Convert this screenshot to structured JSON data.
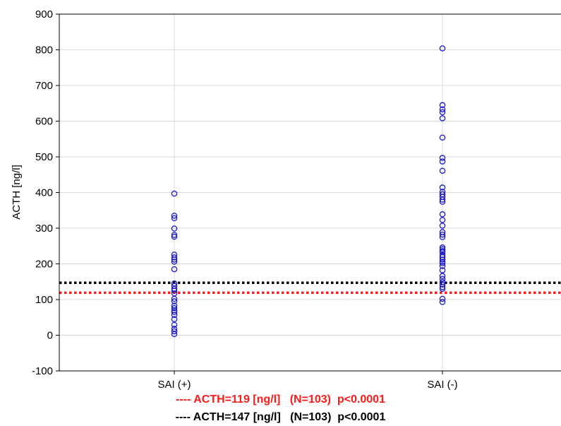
{
  "chart_data": {
    "type": "scatter",
    "ylabel": "ACTH [ng/l]",
    "ylim": [
      -100,
      900
    ],
    "yticks": [
      -100,
      0,
      100,
      200,
      300,
      400,
      500,
      600,
      700,
      800,
      900
    ],
    "categories": [
      "SAI (+)",
      "SAI (-)"
    ],
    "grid": true,
    "marker": "open-circle",
    "point_color": "#1a1acc",
    "series": [
      {
        "category": "SAI (+)",
        "values": [
          397,
          335,
          328,
          299,
          281,
          276,
          226,
          218,
          212,
          206,
          185,
          145,
          138,
          130,
          125,
          117,
          102,
          95,
          83,
          76,
          70,
          65,
          57,
          45,
          29,
          18,
          11,
          3
        ]
      },
      {
        "category": "SAI (-)",
        "values": [
          804,
          645,
          633,
          625,
          608,
          554,
          497,
          487,
          461,
          414,
          402,
          395,
          388,
          380,
          374,
          339,
          323,
          307,
          289,
          282,
          275,
          246,
          241,
          236,
          233,
          225,
          219,
          212,
          206,
          202,
          194,
          182,
          166,
          158,
          149,
          142,
          135,
          130,
          102,
          93
        ]
      }
    ],
    "reference_lines": [
      {
        "value": 119,
        "color": "#ff1a1a",
        "style": "dotted"
      },
      {
        "value": 147,
        "color": "#000000",
        "style": "dotted"
      }
    ]
  },
  "legend": [
    {
      "text": "---- ACTH=119 [ng/l]   (N=103)  p<0.0001",
      "color": "#ff1a1a"
    },
    {
      "text": "---- ACTH=147 [ng/l]   (N=103)  p<0.0001",
      "color": "#000000"
    }
  ]
}
